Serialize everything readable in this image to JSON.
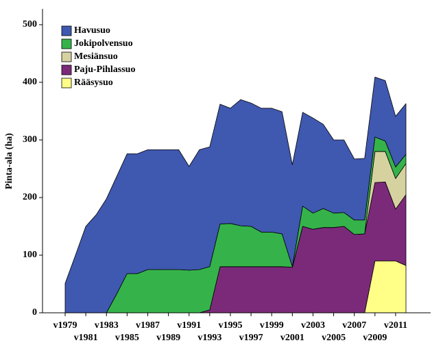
{
  "chart_data": {
    "type": "stacked-area",
    "y_label": "Pinta-ala (ha)",
    "categories": [
      "v1979",
      null,
      "v1981",
      null,
      "v1983",
      null,
      "v1985",
      null,
      "v1987",
      null,
      "v1989",
      null,
      "v1991",
      null,
      "v1993",
      null,
      "v1995",
      null,
      "v1997",
      null,
      "v1999",
      null,
      "v2001",
      null,
      "v2003",
      null,
      "v2005",
      null,
      "v2007",
      null,
      "v2009",
      null,
      "v2011",
      null
    ],
    "series": [
      {
        "name": "Havusuo",
        "color": "#3f58b0",
        "values": [
          51,
          100,
          150,
          170,
          198,
          204,
          208,
          208,
          208,
          208,
          208,
          208,
          180,
          208,
          208,
          208,
          200,
          219,
          214,
          215,
          215,
          212,
          177,
          163,
          165,
          146,
          127,
          126,
          106,
          107,
          104,
          105,
          88,
          88
        ]
      },
      {
        "name": "Jokipolvensuo",
        "color": "#35b34a",
        "values": [
          0,
          0,
          0,
          0,
          0,
          33,
          68,
          68,
          75,
          75,
          75,
          75,
          74,
          75,
          75,
          74,
          75,
          71,
          70,
          60,
          60,
          57,
          1,
          35,
          28,
          33,
          25,
          24,
          25,
          24,
          25,
          18,
          20,
          16
        ]
      },
      {
        "name": "Mesiänsuo",
        "color": "#d6d2a0",
        "values": [
          0,
          0,
          0,
          0,
          0,
          0,
          0,
          0,
          0,
          0,
          0,
          0,
          0,
          0,
          0,
          0,
          0,
          0,
          0,
          0,
          0,
          0,
          0,
          0,
          0,
          0,
          0,
          0,
          0,
          0,
          54,
          53,
          53,
          54
        ]
      },
      {
        "name": "Paju-Pihlassuo",
        "color": "#7b2a7a",
        "values": [
          0,
          0,
          0,
          0,
          0,
          0,
          0,
          0,
          0,
          0,
          0,
          0,
          0,
          0,
          5,
          80,
          80,
          80,
          80,
          80,
          80,
          80,
          79,
          150,
          145,
          148,
          148,
          150,
          136,
          137,
          136,
          137,
          90,
          123
        ]
      },
      {
        "name": "Rääsysuo",
        "color": "#ffff88",
        "values": [
          0,
          0,
          0,
          0,
          0,
          0,
          0,
          0,
          0,
          0,
          0,
          0,
          0,
          0,
          0,
          0,
          0,
          0,
          0,
          0,
          0,
          0,
          0,
          0,
          0,
          0,
          0,
          0,
          0,
          0,
          90,
          90,
          90,
          82
        ]
      }
    ],
    "ylim": [
      0,
      500
    ],
    "yticks": [
      0,
      100,
      200,
      300,
      400,
      500
    ]
  }
}
